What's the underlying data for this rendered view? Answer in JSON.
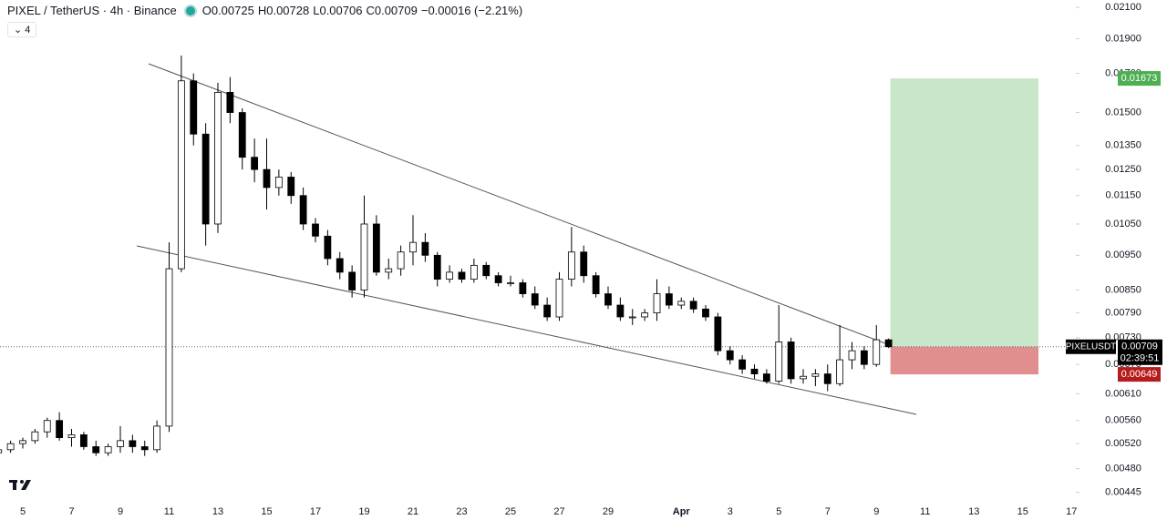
{
  "header": {
    "symbol": "PIXEL / TetherUS · 4h · Binance",
    "ohlc_labels": [
      "O",
      "H",
      "L",
      "C"
    ],
    "change": "−0.00016 (−2.21%)",
    "indicators_count": 4
  },
  "chart_data": {
    "type": "candlestick",
    "log_scale": true,
    "up_color": "#ffffff",
    "down_color": "#000000",
    "edge_color": "#000000",
    "ylim": [
      0.00433,
      0.0215
    ],
    "yticks": [
      {
        "value": 0.021,
        "label": "0.02100"
      },
      {
        "value": 0.019,
        "label": "0.01900"
      },
      {
        "value": 0.017,
        "label": "0.01700"
      },
      {
        "value": 0.015,
        "label": "0.01500"
      },
      {
        "value": 0.0135,
        "label": "0.01350"
      },
      {
        "value": 0.0125,
        "label": "0.01250"
      },
      {
        "value": 0.0115,
        "label": "0.01150"
      },
      {
        "value": 0.0105,
        "label": "0.01050"
      },
      {
        "value": 0.0095,
        "label": "0.00950"
      },
      {
        "value": 0.0085,
        "label": "0.00850"
      },
      {
        "value": 0.0079,
        "label": "0.00790"
      },
      {
        "value": 0.0073,
        "label": "0.00730"
      },
      {
        "value": 0.0067,
        "label": "0.00670"
      },
      {
        "value": 0.0061,
        "label": "0.00610"
      },
      {
        "value": 0.0056,
        "label": "0.00560"
      },
      {
        "value": 0.0052,
        "label": "0.00520"
      },
      {
        "value": 0.0048,
        "label": "0.00480"
      },
      {
        "value": 0.00445,
        "label": "0.00445"
      }
    ],
    "categories": [
      null,
      null,
      "5",
      null,
      null,
      null,
      "7",
      null,
      null,
      null,
      "9",
      null,
      null,
      null,
      "11",
      null,
      null,
      null,
      "13",
      null,
      null,
      null,
      "15",
      null,
      null,
      null,
      "17",
      null,
      null,
      null,
      "19",
      null,
      null,
      null,
      "21",
      null,
      null,
      null,
      "23",
      null,
      null,
      null,
      "25",
      null,
      null,
      null,
      "27",
      null,
      null,
      null,
      "29",
      null,
      null,
      null,
      null,
      null,
      "Apr",
      null,
      null,
      null,
      "3",
      null,
      null,
      null,
      "5",
      null,
      null,
      null,
      "7",
      null,
      null,
      null,
      "9",
      null,
      null,
      null,
      "11",
      null,
      null,
      null,
      "13",
      null,
      null,
      null,
      "15",
      null,
      null,
      null,
      "17"
    ],
    "series": [
      {
        "name": "PIXELUSDT",
        "open": [
          0.00505,
          0.0051,
          0.0052,
          0.00525,
          0.0054,
          0.0056,
          0.0053,
          0.00535,
          0.00515,
          0.00505,
          0.00515,
          0.00525,
          0.00515,
          0.0051,
          0.0055,
          0.0091,
          0.0166,
          0.014,
          0.0105,
          0.016,
          0.015,
          0.013,
          0.0125,
          0.0118,
          0.0122,
          0.0115,
          0.0105,
          0.0101,
          0.0094,
          0.009,
          0.0085,
          0.0105,
          0.009,
          0.0091,
          0.0096,
          0.0099,
          0.0095,
          0.0088,
          0.009,
          0.0088,
          0.0092,
          0.0089,
          0.0087,
          0.0087,
          0.0084,
          0.0081,
          0.0078,
          0.0088,
          0.0096,
          0.0089,
          0.0084,
          0.0081,
          0.0078,
          0.0078,
          0.0079,
          0.0084,
          0.0081,
          0.0082,
          0.008,
          0.0078,
          0.007,
          0.0068,
          0.0066,
          0.0065,
          0.00635,
          0.0072,
          0.0064,
          0.00645,
          0.0065,
          0.0063,
          0.0068,
          0.007,
          0.0067,
          0.00725,
          null,
          null,
          null,
          null,
          null,
          null,
          null,
          null,
          null,
          null,
          null,
          null,
          null,
          null,
          null
        ],
        "high": [
          0.00515,
          0.00525,
          0.0053,
          0.00545,
          0.00565,
          0.00575,
          0.00545,
          0.0054,
          0.00525,
          0.0052,
          0.0055,
          0.00535,
          0.00525,
          0.0056,
          0.0099,
          0.018,
          0.017,
          0.0145,
          0.0165,
          0.0168,
          0.0152,
          0.0138,
          0.0138,
          0.0125,
          0.0124,
          0.0118,
          0.0107,
          0.0103,
          0.0096,
          0.0092,
          0.0115,
          0.0108,
          0.0094,
          0.0098,
          0.0108,
          0.0102,
          0.0096,
          0.0092,
          0.0091,
          0.0094,
          0.0093,
          0.009,
          0.0089,
          0.0088,
          0.0086,
          0.0083,
          0.009,
          0.0104,
          0.0098,
          0.009,
          0.0086,
          0.0083,
          0.008,
          0.008,
          0.0088,
          0.0086,
          0.0083,
          0.0083,
          0.0081,
          0.0079,
          0.0071,
          0.0069,
          0.0067,
          0.0066,
          0.0081,
          0.0073,
          0.0066,
          0.0066,
          0.0067,
          0.0076,
          0.0072,
          0.0071,
          0.0076,
          0.00728,
          null,
          null,
          null,
          null,
          null,
          null,
          null,
          null,
          null,
          null,
          null,
          null,
          null,
          null,
          null
        ],
        "low": [
          0.005,
          0.00505,
          0.00512,
          0.0052,
          0.0053,
          0.00525,
          0.00515,
          0.0051,
          0.005,
          0.005,
          0.00505,
          0.00505,
          0.005,
          0.00505,
          0.0054,
          0.009,
          0.0135,
          0.0098,
          0.0102,
          0.0145,
          0.0125,
          0.012,
          0.011,
          0.0115,
          0.0112,
          0.0103,
          0.0099,
          0.0092,
          0.0088,
          0.0083,
          0.0083,
          0.0089,
          0.0088,
          0.0089,
          0.0092,
          0.0093,
          0.0086,
          0.0087,
          0.0087,
          0.0087,
          0.0088,
          0.0086,
          0.0086,
          0.0083,
          0.008,
          0.0077,
          0.0077,
          0.0086,
          0.0087,
          0.0083,
          0.008,
          0.0077,
          0.0076,
          0.0077,
          0.0077,
          0.008,
          0.008,
          0.0079,
          0.0077,
          0.0069,
          0.0067,
          0.0065,
          0.0064,
          0.0063,
          0.0063,
          0.0063,
          0.0063,
          0.00625,
          0.00615,
          0.00625,
          0.0066,
          0.0066,
          0.00665,
          0.00706,
          null,
          null,
          null,
          null,
          null,
          null,
          null,
          null,
          null,
          null,
          null,
          null,
          null,
          null,
          null
        ],
        "close": [
          0.0051,
          0.0052,
          0.00525,
          0.0054,
          0.0056,
          0.0053,
          0.00535,
          0.00515,
          0.00505,
          0.00515,
          0.00525,
          0.00515,
          0.0051,
          0.0055,
          0.0091,
          0.0166,
          0.014,
          0.0105,
          0.016,
          0.015,
          0.013,
          0.0125,
          0.0118,
          0.0122,
          0.0115,
          0.0105,
          0.0101,
          0.0094,
          0.009,
          0.0085,
          0.0105,
          0.009,
          0.0091,
          0.0096,
          0.0099,
          0.0095,
          0.0088,
          0.009,
          0.0088,
          0.0092,
          0.0089,
          0.0087,
          0.0087,
          0.0084,
          0.0081,
          0.0078,
          0.0088,
          0.0096,
          0.0089,
          0.0084,
          0.0081,
          0.0078,
          0.0078,
          0.0079,
          0.0084,
          0.0081,
          0.0082,
          0.008,
          0.0078,
          0.007,
          0.0068,
          0.0066,
          0.0065,
          0.00635,
          0.0072,
          0.0064,
          0.00645,
          0.0065,
          0.0063,
          0.0068,
          0.007,
          0.0067,
          0.00725,
          0.00709,
          null,
          null,
          null,
          null,
          null,
          null,
          null,
          null,
          null,
          null,
          null,
          null,
          null,
          null,
          null
        ]
      }
    ],
    "countdown": "02:39:51",
    "position": {
      "target": 0.01673,
      "stop": 0.00649,
      "target_color": "#c8e6c9",
      "stop_color": "#e08e8e",
      "target_tag_color": "#4caf50",
      "stop_tag_color": "#b71c1c"
    }
  }
}
